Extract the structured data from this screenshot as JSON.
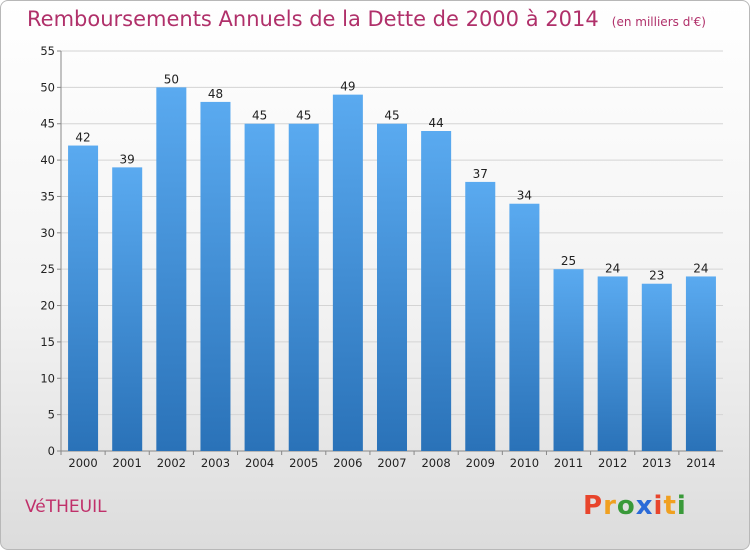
{
  "chart_data": {
    "type": "bar",
    "title": "Remboursements Annuels de la Dette de 2000 à 2014",
    "subtitle": "(en milliers d'€)",
    "categories": [
      "2000",
      "2001",
      "2002",
      "2003",
      "2004",
      "2005",
      "2006",
      "2007",
      "2008",
      "2009",
      "2010",
      "2011",
      "2012",
      "2013",
      "2014"
    ],
    "values": [
      42,
      39,
      50,
      48,
      45,
      45,
      49,
      45,
      44,
      37,
      34,
      25,
      24,
      23,
      24
    ],
    "ylim": [
      0,
      55
    ],
    "yticks": [
      0,
      5,
      10,
      15,
      20,
      25,
      30,
      35,
      40,
      45,
      50,
      55
    ],
    "grid": true,
    "bar_color_top": "#5aaaf0",
    "bar_color_bottom": "#2a72b8"
  },
  "footer": {
    "commune": "VéTHEUIL",
    "logo": "Proxiti",
    "logo_colors": [
      "#e8452c",
      "#f0a020",
      "#3a9a3a",
      "#2a6ad8",
      "#e8452c",
      "#f0a020",
      "#3a9a3a"
    ]
  }
}
